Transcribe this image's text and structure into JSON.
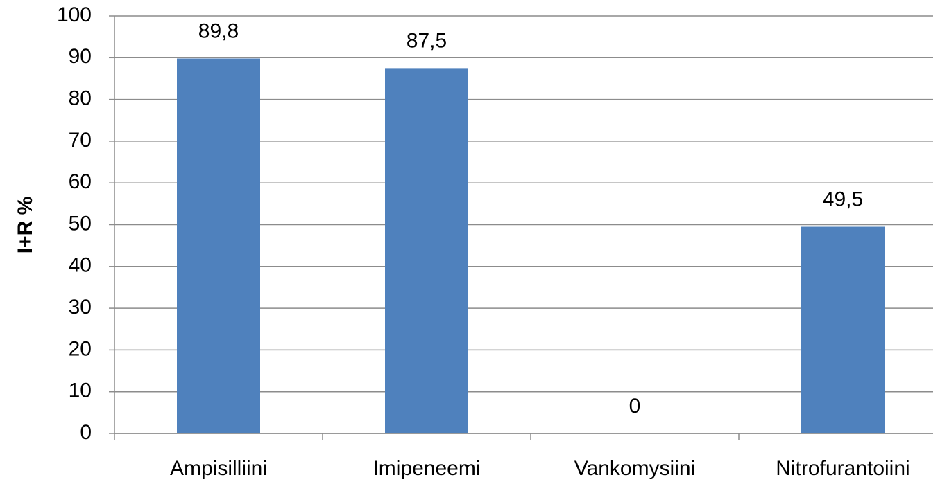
{
  "chart_data": {
    "type": "bar",
    "y_label": "I+R %",
    "categories": [
      "Ampisilliini",
      "Imipeneemi",
      "Vankomysiini",
      "Nitrofurantoiini"
    ],
    "values": [
      89.8,
      87.5,
      0,
      49.5
    ],
    "value_labels": [
      "89,8",
      "87,5",
      "0",
      "49,5"
    ],
    "color": "#4f81bd",
    "ylim": [
      0,
      100
    ],
    "yticks": [
      0,
      10,
      20,
      30,
      40,
      50,
      60,
      70,
      80,
      90,
      100
    ],
    "grid": true
  }
}
